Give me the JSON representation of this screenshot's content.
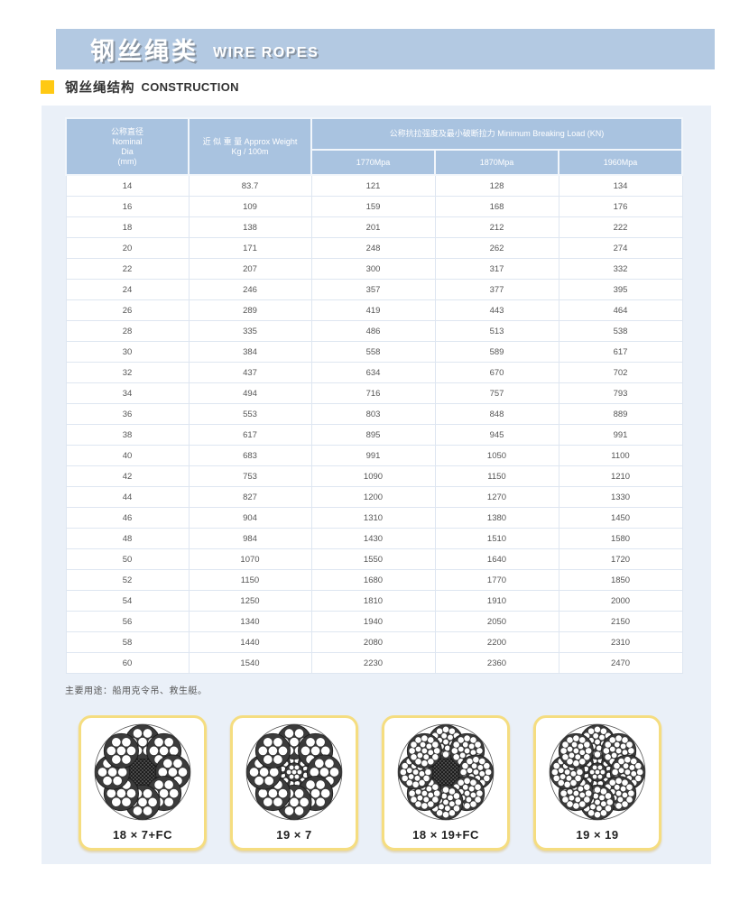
{
  "banner": {
    "title_zh": "钢丝绳类",
    "title_en": "WIRE ROPES"
  },
  "section": {
    "title_zh": "钢丝绳结构",
    "title_en": "CONSTRUCTION"
  },
  "table": {
    "header": {
      "dia_l1": "公称直径",
      "dia_l2": "Nominal",
      "dia_l3": "Dia",
      "dia_l4": "(mm)",
      "weight_l1": "近 似 重 量 Approx Weight",
      "weight_l2": "Kg / 100m",
      "breaking": "公称抗拉强度及最小破断拉力 Minimum Breaking Load (KN)",
      "grades": [
        "1770Mpa",
        "1870Mpa",
        "1960Mpa"
      ]
    },
    "rows": [
      [
        "14",
        "83.7",
        "121",
        "128",
        "134"
      ],
      [
        "16",
        "109",
        "159",
        "168",
        "176"
      ],
      [
        "18",
        "138",
        "201",
        "212",
        "222"
      ],
      [
        "20",
        "171",
        "248",
        "262",
        "274"
      ],
      [
        "22",
        "207",
        "300",
        "317",
        "332"
      ],
      [
        "24",
        "246",
        "357",
        "377",
        "395"
      ],
      [
        "26",
        "289",
        "419",
        "443",
        "464"
      ],
      [
        "28",
        "335",
        "486",
        "513",
        "538"
      ],
      [
        "30",
        "384",
        "558",
        "589",
        "617"
      ],
      [
        "32",
        "437",
        "634",
        "670",
        "702"
      ],
      [
        "34",
        "494",
        "716",
        "757",
        "793"
      ],
      [
        "36",
        "553",
        "803",
        "848",
        "889"
      ],
      [
        "38",
        "617",
        "895",
        "945",
        "991"
      ],
      [
        "40",
        "683",
        "991",
        "1050",
        "1100"
      ],
      [
        "42",
        "753",
        "1090",
        "1150",
        "1210"
      ],
      [
        "44",
        "827",
        "1200",
        "1270",
        "1330"
      ],
      [
        "46",
        "904",
        "1310",
        "1380",
        "1450"
      ],
      [
        "48",
        "984",
        "1430",
        "1510",
        "1580"
      ],
      [
        "50",
        "1070",
        "1550",
        "1640",
        "1720"
      ],
      [
        "52",
        "1150",
        "1680",
        "1770",
        "1850"
      ],
      [
        "54",
        "1250",
        "1810",
        "1910",
        "2000"
      ],
      [
        "56",
        "1340",
        "1940",
        "2050",
        "2150"
      ],
      [
        "58",
        "1440",
        "2080",
        "2200",
        "2310"
      ],
      [
        "60",
        "1540",
        "2230",
        "2360",
        "2470"
      ]
    ]
  },
  "note": "主要用途：船用克令吊、救生艇。",
  "diagrams": [
    {
      "label": "18 × 7+FC",
      "core": "fc",
      "wires": 7
    },
    {
      "label": "19 × 7",
      "core": "strand",
      "wires": 7
    },
    {
      "label": "18 × 19+FC",
      "core": "fc",
      "wires": 19
    },
    {
      "label": "19 × 19",
      "core": "strand",
      "wires": 19
    }
  ],
  "colors": {
    "banner_bg": "#b3c9e2",
    "table_header_bg": "#a9c3e0",
    "panel_bg": "#eaf0f8",
    "accent_yellow": "#ffc913",
    "card_border": "#f5dd80"
  }
}
